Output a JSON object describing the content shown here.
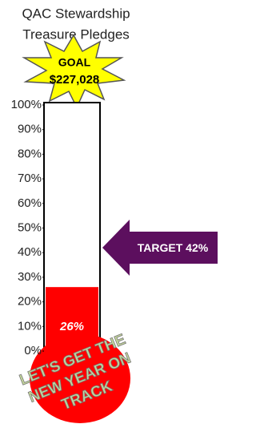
{
  "chart_data": {
    "type": "thermometer",
    "title_lines": [
      "QAC Stewardship",
      "Treasure Pledges"
    ],
    "goal": {
      "label": "GOAL",
      "amount": "$227,028"
    },
    "values": [
      26
    ],
    "value_labels": [
      "26%"
    ],
    "color": "#ff0000",
    "ylim": [
      0,
      100
    ],
    "yticks": [
      {
        "value": 0,
        "label": "0%"
      },
      {
        "value": 10,
        "label": "10%"
      },
      {
        "value": 20,
        "label": "20%"
      },
      {
        "value": 30,
        "label": "30%"
      },
      {
        "value": 40,
        "label": "40%"
      },
      {
        "value": 50,
        "label": "50%"
      },
      {
        "value": 60,
        "label": "60%"
      },
      {
        "value": 70,
        "label": "70%"
      },
      {
        "value": 80,
        "label": "80%"
      },
      {
        "value": 90,
        "label": "90%"
      },
      {
        "value": 100,
        "label": "100%"
      }
    ],
    "target": {
      "value": 42,
      "label": "TARGET 42%",
      "color": "#5c0f5e"
    },
    "annotation_lines": [
      "LET'S GET THE",
      "NEW YEAR ON",
      "TRACK"
    ]
  }
}
